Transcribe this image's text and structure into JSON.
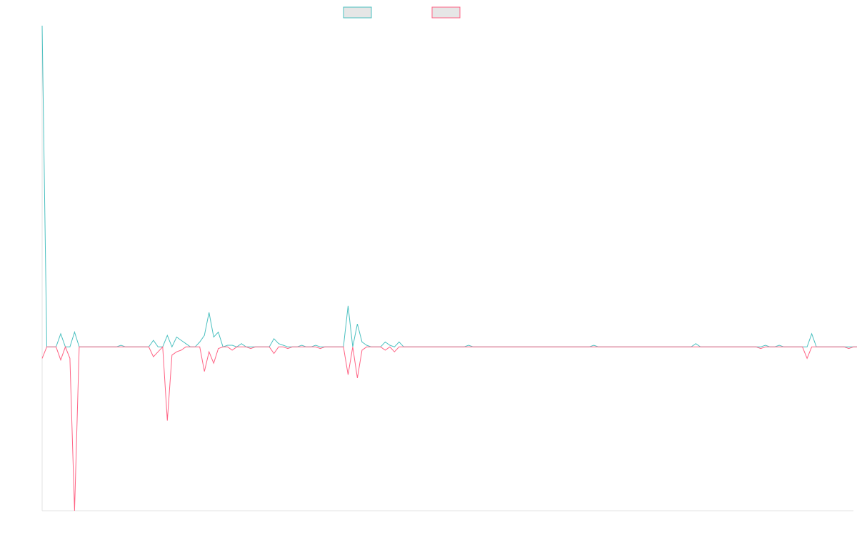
{
  "chart_data": {
    "type": "line",
    "title": "",
    "xlabel": "",
    "ylabel": "",
    "grid": false,
    "legend": "top-center",
    "x_count": 176,
    "ylim": [
      -1.0,
      1.96
    ],
    "series": [
      {
        "name": "",
        "color": "#4bc0c0",
        "fill": "#e6e6e6",
        "values": [
          1.96,
          0,
          0,
          0,
          0.08,
          0,
          0,
          0.09,
          0,
          0,
          0,
          0,
          0,
          0,
          0,
          0,
          0,
          0.01,
          0,
          0,
          0,
          0,
          0,
          0,
          0.04,
          0,
          0,
          0.07,
          0,
          0.06,
          0.04,
          0.02,
          0,
          0,
          0.03,
          0.07,
          0.21,
          0.06,
          0.09,
          0,
          0.01,
          0.01,
          0,
          0.02,
          0,
          0,
          0,
          0,
          0,
          0,
          0.05,
          0.02,
          0.01,
          0,
          0,
          0,
          0.01,
          0,
          0,
          0.01,
          0,
          0,
          0,
          0,
          0,
          0,
          0.25,
          0,
          0.14,
          0.03,
          0.01,
          0,
          0,
          0,
          0.03,
          0.01,
          0,
          0.03,
          0,
          0,
          0,
          0,
          0,
          0,
          0,
          0,
          0,
          0,
          0,
          0,
          0,
          0,
          0.01,
          0,
          0,
          0,
          0,
          0,
          0,
          0,
          0,
          0,
          0,
          0,
          0,
          0,
          0,
          0,
          0,
          0,
          0,
          0,
          0,
          0,
          0,
          0,
          0,
          0,
          0,
          0.01,
          0,
          0,
          0,
          0,
          0,
          0,
          0,
          0,
          0,
          0,
          0,
          0,
          0,
          0,
          0,
          0,
          0,
          0,
          0,
          0,
          0,
          0.02,
          0,
          0,
          0,
          0,
          0,
          0,
          0,
          0,
          0,
          0,
          0,
          0,
          0,
          0,
          0.01,
          0,
          0,
          0.01,
          0,
          0,
          0,
          0,
          0,
          0,
          0.08,
          0,
          0,
          0,
          0,
          0,
          0,
          0,
          0,
          0,
          0,
          0,
          0.04,
          0,
          0,
          0.04,
          0,
          0
        ]
      },
      {
        "name": "",
        "color": "#ff6384",
        "fill": "#e6e6e6",
        "values": [
          -0.07,
          0,
          0,
          0,
          -0.08,
          0,
          -0.07,
          -1.0,
          0,
          0,
          0,
          0,
          0,
          0,
          0,
          0,
          0,
          0,
          0,
          0,
          0,
          0,
          0,
          0,
          -0.06,
          -0.03,
          0,
          -0.45,
          -0.05,
          -0.03,
          -0.02,
          0,
          0,
          0,
          0,
          -0.15,
          -0.03,
          -0.1,
          -0.01,
          0,
          0,
          -0.02,
          0,
          0,
          0,
          -0.01,
          0,
          0,
          0,
          0,
          -0.04,
          0,
          0,
          -0.01,
          0,
          0,
          0,
          0,
          0,
          0,
          -0.01,
          0,
          0,
          0,
          0,
          0,
          -0.17,
          0,
          -0.19,
          -0.02,
          0,
          0,
          0,
          0,
          -0.02,
          0,
          -0.03,
          0,
          0,
          0,
          0,
          0,
          0,
          0,
          0,
          0,
          0,
          0,
          0,
          0,
          0,
          0,
          0,
          0,
          0,
          0,
          0,
          0,
          0,
          0,
          0,
          0,
          0,
          0,
          0,
          0,
          0,
          0,
          0,
          0,
          0,
          0,
          0,
          0,
          0,
          0,
          0,
          0,
          0,
          0,
          0,
          0,
          0,
          0,
          0,
          0,
          0,
          0,
          0,
          0,
          0,
          0,
          0,
          0,
          0,
          0,
          0,
          0,
          0,
          0,
          0,
          0,
          0,
          0,
          0,
          0,
          0,
          0,
          0,
          0,
          0,
          0,
          0,
          0,
          0,
          -0.01,
          0,
          0,
          0,
          0,
          0,
          0,
          0,
          0,
          0,
          -0.07,
          0,
          0,
          0,
          0,
          0,
          0,
          0,
          0,
          -0.01,
          0,
          0,
          -0.01,
          0,
          0,
          0,
          0,
          0
        ]
      }
    ]
  }
}
